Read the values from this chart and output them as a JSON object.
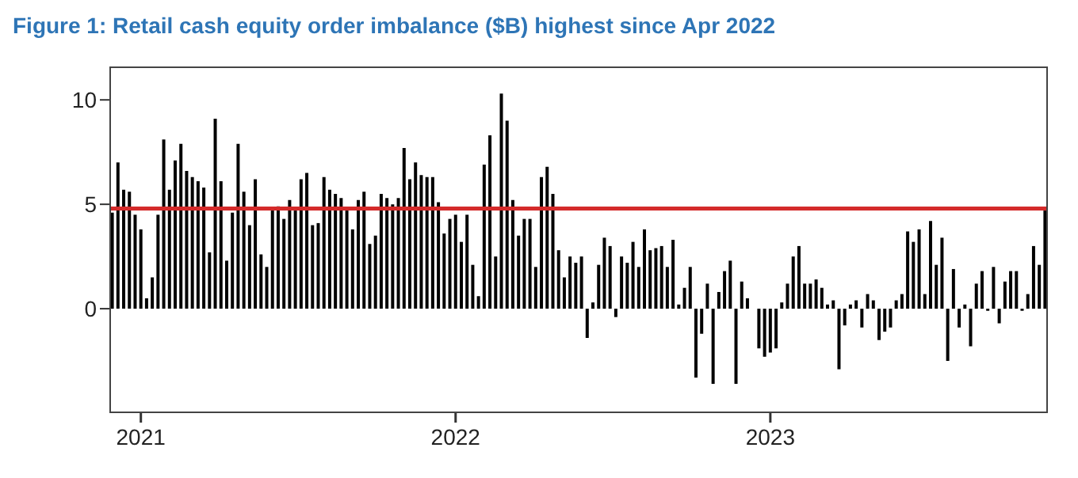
{
  "chart_data": {
    "type": "bar",
    "title": "Figure 1: Retail cash equity order imbalance ($B) highest since Apr 2022",
    "categories": [
      null,
      null,
      null,
      null,
      null,
      "2021",
      null,
      null,
      null,
      null,
      null,
      null,
      null,
      null,
      null,
      null,
      null,
      null,
      null,
      null,
      null,
      null,
      null,
      null,
      null,
      null,
      null,
      null,
      null,
      null,
      null,
      null,
      null,
      null,
      null,
      null,
      null,
      null,
      null,
      null,
      null,
      null,
      null,
      null,
      null,
      null,
      null,
      null,
      null,
      null,
      null,
      null,
      null,
      null,
      null,
      null,
      null,
      null,
      null,
      null,
      "2022",
      null,
      null,
      null,
      null,
      null,
      null,
      null,
      null,
      null,
      null,
      null,
      null,
      null,
      null,
      null,
      null,
      null,
      null,
      null,
      null,
      null,
      null,
      null,
      null,
      null,
      null,
      null,
      null,
      null,
      null,
      null,
      null,
      null,
      null,
      null,
      null,
      null,
      null,
      null,
      null,
      null,
      null,
      null,
      null,
      null,
      null,
      null,
      null,
      null,
      null,
      null,
      null,
      null,
      null,
      "2023",
      null,
      null,
      null,
      null,
      null,
      null,
      null,
      null,
      null,
      null,
      null,
      null,
      null,
      null,
      null,
      null,
      null,
      null,
      null,
      null,
      null,
      null,
      null,
      null,
      null,
      null,
      null,
      null,
      null,
      null,
      null,
      null,
      null,
      null,
      null,
      null,
      null,
      null,
      null,
      null,
      null,
      null,
      null,
      null,
      null,
      null,
      null,
      null
    ],
    "values": [
      4.6,
      7.0,
      5.7,
      5.6,
      4.5,
      3.8,
      0.5,
      1.5,
      4.5,
      8.1,
      5.7,
      7.1,
      7.9,
      6.6,
      6.3,
      6.1,
      5.8,
      2.7,
      9.1,
      6.1,
      2.3,
      4.6,
      7.9,
      5.6,
      4.0,
      6.2,
      2.6,
      2.0,
      4.7,
      4.9,
      4.3,
      5.2,
      4.7,
      6.2,
      6.5,
      4.0,
      4.1,
      6.3,
      5.7,
      5.5,
      5.3,
      4.7,
      3.8,
      5.2,
      5.6,
      3.1,
      3.5,
      5.5,
      5.3,
      5.0,
      5.3,
      7.7,
      6.2,
      7.0,
      6.4,
      6.3,
      6.3,
      5.1,
      3.6,
      4.3,
      4.5,
      3.2,
      4.5,
      2.1,
      0.6,
      6.9,
      8.3,
      2.5,
      10.3,
      9.0,
      5.2,
      3.5,
      4.3,
      4.3,
      2.0,
      6.3,
      6.8,
      5.5,
      2.8,
      1.5,
      2.5,
      2.2,
      2.5,
      -1.4,
      0.3,
      2.1,
      3.4,
      3.0,
      -0.4,
      2.5,
      2.2,
      3.2,
      2.0,
      3.8,
      2.8,
      2.9,
      3.0,
      2.0,
      3.3,
      0.2,
      1.0,
      2.0,
      -3.3,
      -1.2,
      1.2,
      -3.6,
      0.8,
      1.8,
      2.3,
      -3.6,
      1.3,
      0.5,
      0,
      -1.9,
      -2.3,
      -2.1,
      -1.9,
      0.3,
      1.2,
      2.5,
      3.0,
      1.2,
      1.2,
      1.4,
      1.0,
      0.2,
      0.4,
      -2.9,
      -0.8,
      0.2,
      0.4,
      -0.9,
      0.7,
      0.4,
      -1.5,
      -1.1,
      -0.9,
      0.4,
      0.7,
      3.7,
      3.2,
      3.8,
      0.7,
      4.2,
      2.1,
      3.4,
      -2.5,
      1.9,
      -0.9,
      0.2,
      -1.8,
      1.2,
      1.8,
      -0.1,
      2.0,
      -0.7,
      1.3,
      1.8,
      1.8,
      -0.1,
      0.7,
      3.0,
      2.1,
      4.7
    ],
    "color": "#000000",
    "ylim": [
      -5,
      11.6
    ],
    "yticks": [
      0,
      5,
      10
    ],
    "ref_lines": [
      {
        "axis": "y",
        "value": 4.8,
        "color": "#d42a2a"
      }
    ]
  }
}
